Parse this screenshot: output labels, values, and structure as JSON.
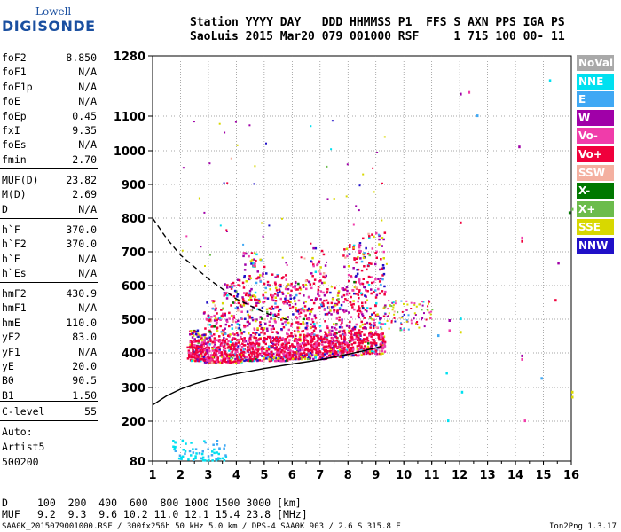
{
  "logo": {
    "top": "Lowell",
    "bottom": "DIGISONDE"
  },
  "header": {
    "line1": "Station YYYY DAY   DDD HHMMSS P1  FFS S AXN PPS IGA PS",
    "line2": "SaoLuis 2015 Mar20 079 001000 RSF     1 715 100 00- 11"
  },
  "params_group1": [
    {
      "k": "foF2",
      "v": "8.850"
    },
    {
      "k": "foF1",
      "v": "N/A"
    },
    {
      "k": "foF1p",
      "v": "N/A"
    },
    {
      "k": "foE",
      "v": "N/A"
    },
    {
      "k": "foEp",
      "v": "0.45"
    },
    {
      "k": "fxI",
      "v": "9.35"
    },
    {
      "k": "foEs",
      "v": "N/A"
    },
    {
      "k": "fmin",
      "v": "2.70"
    }
  ],
  "params_group2": [
    {
      "k": "MUF(D)",
      "v": "23.82"
    },
    {
      "k": "M(D)",
      "v": "2.69"
    },
    {
      "k": "D",
      "v": "N/A"
    }
  ],
  "params_group3": [
    {
      "k": "h`F",
      "v": "370.0"
    },
    {
      "k": "h`F2",
      "v": "370.0"
    },
    {
      "k": "h`E",
      "v": "N/A"
    },
    {
      "k": "h`Es",
      "v": "N/A"
    }
  ],
  "params_group4": [
    {
      "k": "hmF2",
      "v": "430.9"
    },
    {
      "k": "hmF1",
      "v": "N/A"
    },
    {
      "k": "hmE",
      "v": "110.0"
    },
    {
      "k": "yF2",
      "v": "83.0"
    },
    {
      "k": "yF1",
      "v": "N/A"
    },
    {
      "k": "yE",
      "v": "20.0"
    },
    {
      "k": "B0",
      "v": "90.5"
    },
    {
      "k": "B1",
      "v": "1.50"
    }
  ],
  "params_group5": [
    {
      "k": "C-level",
      "v": "55"
    }
  ],
  "auto": {
    "line1": "Auto:",
    "line2": "Artist5",
    "line3": "500200"
  },
  "legend": [
    {
      "label": "NoVal",
      "color": "#a9a9a9"
    },
    {
      "label": "NNE",
      "color": "#00e0f0"
    },
    {
      "label": "E",
      "color": "#3fa8f4"
    },
    {
      "label": "W",
      "color": "#a000a8"
    },
    {
      "label": "Vo-",
      "color": "#f03caa"
    },
    {
      "label": "Vo+",
      "color": "#f0003c"
    },
    {
      "label": "SSW",
      "color": "#f4b0a0"
    },
    {
      "label": "X-",
      "color": "#007800"
    },
    {
      "label": "X+",
      "color": "#6cbc4c"
    },
    {
      "label": "SSE",
      "color": "#d8d800"
    },
    {
      "label": "NNW",
      "color": "#2010c8"
    }
  ],
  "footer": {
    "d_label": "D",
    "d_values": "100  200  400  600  800 1000 1500 3000 [km]",
    "muf_label": "MUF",
    "muf_values": "9.2  9.3  9.6 10.2 11.0 12.1 15.4 23.8 [MHz]",
    "file_info": "SAA0K_2015079001000.RSF / 300fx256h 50 kHz 5.0 km / DPS-4 SAA0K 903 / 2.6 S 315.8 E",
    "version": "Ion2Png 1.3.17"
  },
  "chart_data": {
    "type": "scatter",
    "title": "",
    "xlabel": "",
    "ylabel": "",
    "xlim": [
      1,
      16
    ],
    "ylim": [
      80,
      1280
    ],
    "x_ticks": [
      "1",
      "2",
      "3",
      "4",
      "5",
      "6",
      "7",
      "8",
      "9",
      "10",
      "11",
      "12",
      "13",
      "14",
      "15",
      "16"
    ],
    "y_ticks": [
      "80",
      "200",
      "300",
      "400",
      "500",
      "600",
      "700",
      "800",
      "900",
      "1000",
      "1100",
      "1280"
    ],
    "y_axis_scale": "virtual height (non-linear)",
    "grid": true,
    "series": [
      {
        "name": "profile",
        "style": "solid",
        "x": [
          1.0,
          1.5,
          2.0,
          2.5,
          3.0,
          3.5,
          4.0,
          5.0,
          6.0,
          7.0,
          8.0,
          8.5,
          9.0,
          9.2
        ],
        "y": [
          248,
          275,
          295,
          310,
          322,
          332,
          340,
          355,
          368,
          380,
          396,
          405,
          415,
          420
        ]
      },
      {
        "name": "profile-dashed",
        "style": "dashed",
        "x": [
          1.0,
          1.5,
          2.0,
          2.5,
          3.0,
          3.5,
          4.0,
          4.5,
          5.0,
          5.5,
          6.0
        ],
        "y": [
          800,
          740,
          690,
          655,
          620,
          590,
          560,
          540,
          520,
          505,
          495
        ]
      },
      {
        "name": "trace-F",
        "style": "dots",
        "density": "dense",
        "x_range": [
          2.0,
          9.3
        ],
        "y_range": [
          360,
          800
        ]
      },
      {
        "name": "trace-F-extension",
        "style": "dots",
        "density": "sparse",
        "x_range": [
          9.3,
          11.0
        ],
        "y_range": [
          470,
          560
        ]
      },
      {
        "name": "trace-low",
        "style": "dots",
        "density": "sparse",
        "x_range": [
          1.7,
          3.6
        ],
        "y_range": [
          80,
          145
        ]
      },
      {
        "name": "scatter-noise",
        "style": "dots",
        "density": "sparse",
        "x_range": [
          2.0,
          16.0
        ],
        "y_range": [
          200,
          1280
        ]
      }
    ]
  }
}
